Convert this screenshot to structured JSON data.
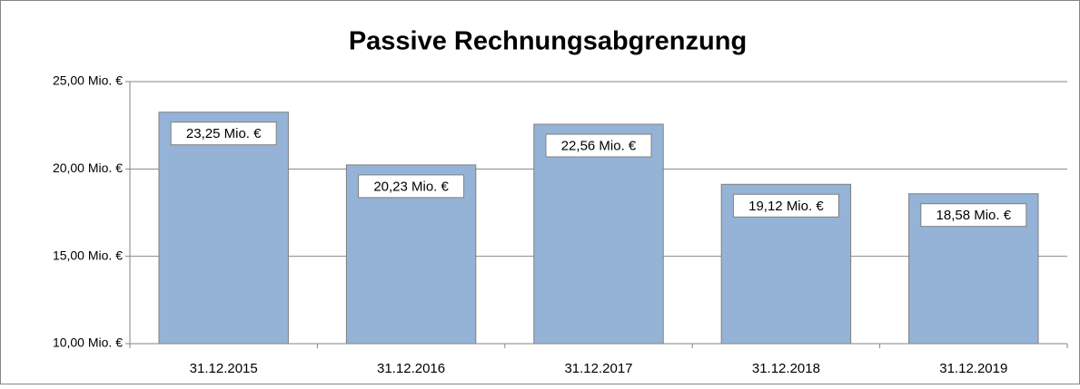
{
  "chart_data": {
    "type": "bar",
    "title": "Passive Rechnungsabgrenzung",
    "categories": [
      "31.12.2015",
      "31.12.2016",
      "31.12.2017",
      "31.12.2018",
      "31.12.2019"
    ],
    "values": [
      23.25,
      20.23,
      22.56,
      19.12,
      18.58
    ],
    "value_labels": [
      "23,25 Mio. €",
      "20,23 Mio. €",
      "22,56 Mio. €",
      "19,12 Mio. €",
      "18,58 Mio. €"
    ],
    "color": "#95b3d7",
    "ylim": [
      10,
      25
    ],
    "yticks": [
      {
        "value": 10,
        "label": "10,00 Mio. €"
      },
      {
        "value": 15,
        "label": "15,00 Mio. €"
      },
      {
        "value": 20,
        "label": "20,00 Mio. €"
      },
      {
        "value": 25,
        "label": "25,00 Mio. €"
      }
    ],
    "grid": true
  }
}
